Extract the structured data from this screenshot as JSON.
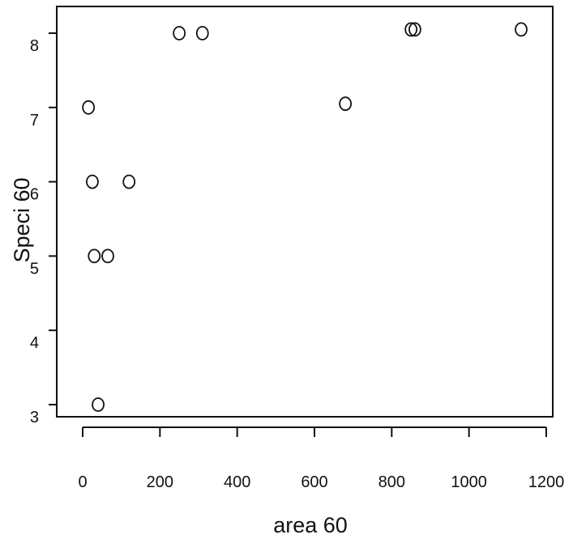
{
  "chart_data": {
    "type": "scatter",
    "title": "",
    "xlabel": "area 60",
    "ylabel": "Speci 60",
    "xlim": [
      0,
      1200
    ],
    "ylim": [
      3,
      8
    ],
    "x_ticks": [
      0,
      200,
      400,
      600,
      800,
      1000,
      1200
    ],
    "y_ticks": [
      3,
      4,
      5,
      6,
      7,
      8
    ],
    "y_tick_labels": [
      "3",
      "4",
      "5",
      "6",
      "7",
      "8"
    ],
    "x_tick_labels": [
      "0",
      "200",
      "400",
      "600",
      "800",
      "1000",
      "1200"
    ],
    "marker": "open-circle",
    "grid": false,
    "points": [
      {
        "x": 15,
        "y": 7.0
      },
      {
        "x": 25,
        "y": 6.0
      },
      {
        "x": 30,
        "y": 5.0
      },
      {
        "x": 65,
        "y": 5.0
      },
      {
        "x": 40,
        "y": 3.0
      },
      {
        "x": 120,
        "y": 6.0
      },
      {
        "x": 250,
        "y": 8.0
      },
      {
        "x": 310,
        "y": 8.0
      },
      {
        "x": 680,
        "y": 7.05
      },
      {
        "x": 850,
        "y": 8.05
      },
      {
        "x": 860,
        "y": 8.05
      },
      {
        "x": 1135,
        "y": 8.05
      }
    ]
  }
}
